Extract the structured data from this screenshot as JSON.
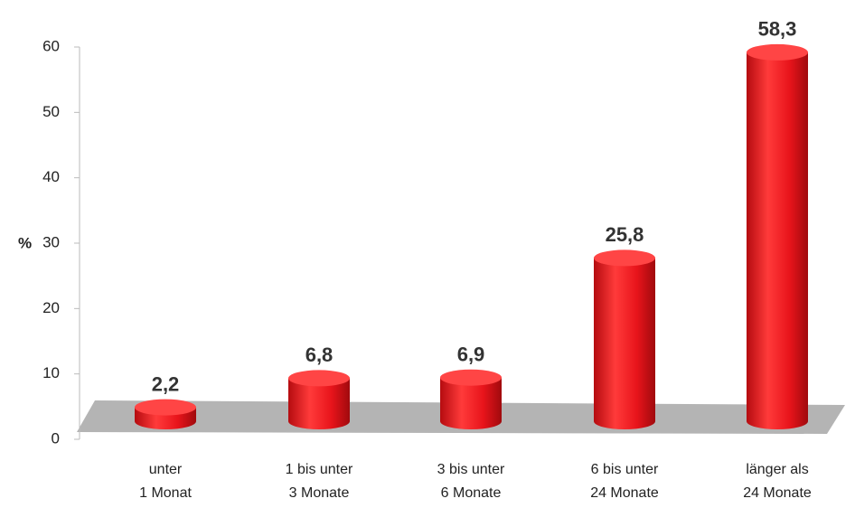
{
  "chart_data": {
    "type": "bar",
    "categories": [
      [
        "unter",
        "1 Monat"
      ],
      [
        "1 bis unter",
        "3 Monate"
      ],
      [
        "3 bis unter",
        "6 Monate"
      ],
      [
        "6 bis unter",
        "24 Monate"
      ],
      [
        "länger als",
        "24 Monate"
      ]
    ],
    "values": [
      2.2,
      6.8,
      6.9,
      25.8,
      58.3
    ],
    "value_labels": [
      "2,2",
      "6,8",
      "6,9",
      "25,8",
      "58,3"
    ],
    "color": "#e8141b",
    "y_label": "%",
    "ylim": [
      0,
      60
    ],
    "yticks": [
      0,
      10,
      20,
      30,
      40,
      50,
      60
    ]
  }
}
